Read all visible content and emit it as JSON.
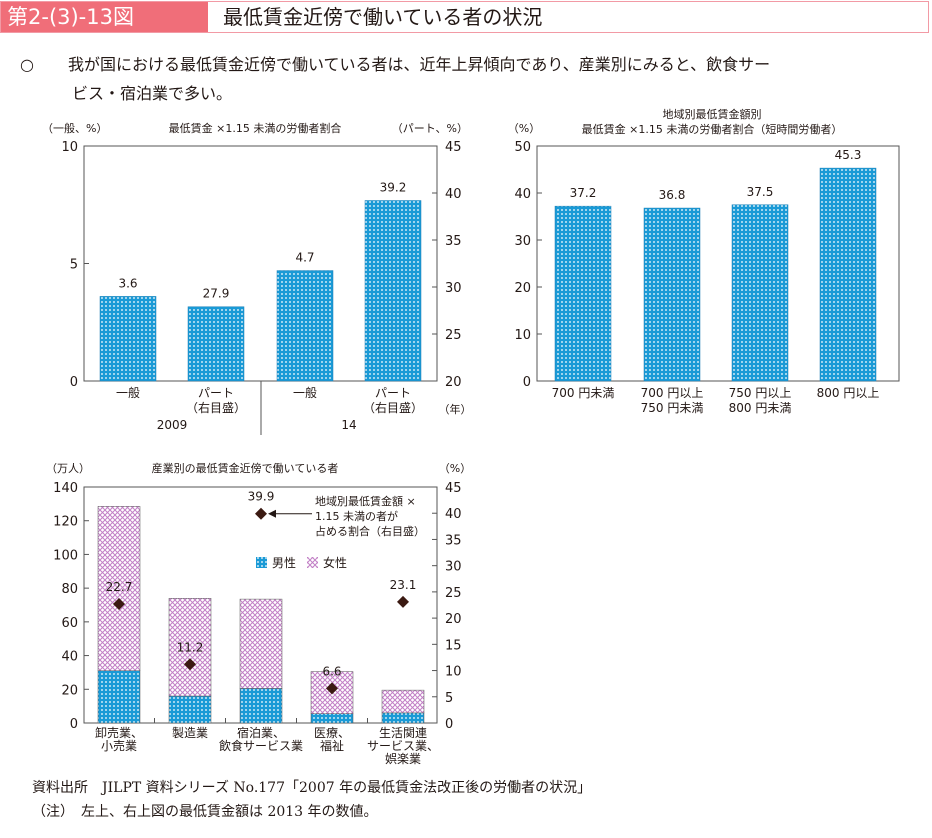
{
  "header": {
    "number": "第2-(3)-13図",
    "title": "最低賃金近傍で働いている者の状況"
  },
  "lead": {
    "mark": "○",
    "line1": "我が国における最低賃金近傍で働いている者は、近年上昇傾向であり、産業別にみると、飲食サー",
    "line2": "ビス・宿泊業で多い。"
  },
  "footer": {
    "source": "資料出所　JILPT 資料シリーズ No.177「2007 年の最低賃金法改正後の労働者の状況」",
    "note": "（注）　左上、右上図の最低賃金額は 2013 年の数値。"
  },
  "colors": {
    "male": "#1a9ad6",
    "female": "#c27fc6",
    "marker": "#3b1a12",
    "header": "#f06e79"
  },
  "chart_data": [
    {
      "type": "bar",
      "title": "最低賃金 ×1.15 未満の労働者割合",
      "ylabel_left": "（一般、%）",
      "ylabel_right": "（パート、%）",
      "ylim_left": [
        0,
        10
      ],
      "yticks_left": [
        0,
        5,
        10
      ],
      "ylim_right": [
        20,
        45
      ],
      "yticks_right": [
        20,
        25,
        30,
        35,
        40,
        45
      ],
      "categories": [
        "一般",
        "パート\n（右目盛）",
        "一般",
        "パート\n（右目盛）"
      ],
      "groups": [
        "2009",
        "14"
      ],
      "xunit": "（年）",
      "values": [
        3.6,
        27.9,
        4.7,
        39.2
      ],
      "axis": [
        "left",
        "right",
        "left",
        "right"
      ],
      "labels": [
        "3.6",
        "27.9",
        "4.7",
        "39.2"
      ]
    },
    {
      "type": "bar",
      "title": "地域別最低賃金額別\n最低賃金 ×1.15 未満の労働者割合（短時間労働者）",
      "ylabel": "（%）",
      "ylim": [
        0,
        50
      ],
      "yticks": [
        0,
        10,
        20,
        30,
        40,
        50
      ],
      "categories": [
        "700 円未満",
        "700 円以上\n750 円未満",
        "750 円以上\n800 円未満",
        "800 円以上"
      ],
      "values": [
        37.2,
        36.8,
        37.5,
        45.3
      ]
    },
    {
      "type": "bar",
      "stacked": true,
      "title": "産業別の最低賃金近傍で働いている者",
      "ylabel_left": "（万人）",
      "ylabel_right": "（%）",
      "ylim_left": [
        0,
        140
      ],
      "yticks_left": [
        0,
        20,
        40,
        60,
        80,
        100,
        120,
        140
      ],
      "ylim_right": [
        0,
        45
      ],
      "yticks_right": [
        0,
        5,
        10,
        15,
        20,
        25,
        30,
        35,
        40,
        45
      ],
      "categories": [
        "卸売業、\n小売業",
        "製造業",
        "宿泊業、\n飲食サービス業",
        "医療、\n福祉",
        "生活関連\nサービス業、\n娯楽業"
      ],
      "series": [
        {
          "name": "男性",
          "values": [
            31,
            16,
            20.5,
            5.5,
            6
          ]
        },
        {
          "name": "女性",
          "values": [
            97.5,
            58,
            53,
            25,
            13.5
          ]
        }
      ],
      "ratio": {
        "name": "地域別最低賃金額 ×\n1.15 未満の者が\n占める割合（右目盛）",
        "values": [
          22.7,
          11.2,
          39.9,
          6.6,
          23.1
        ]
      }
    }
  ]
}
